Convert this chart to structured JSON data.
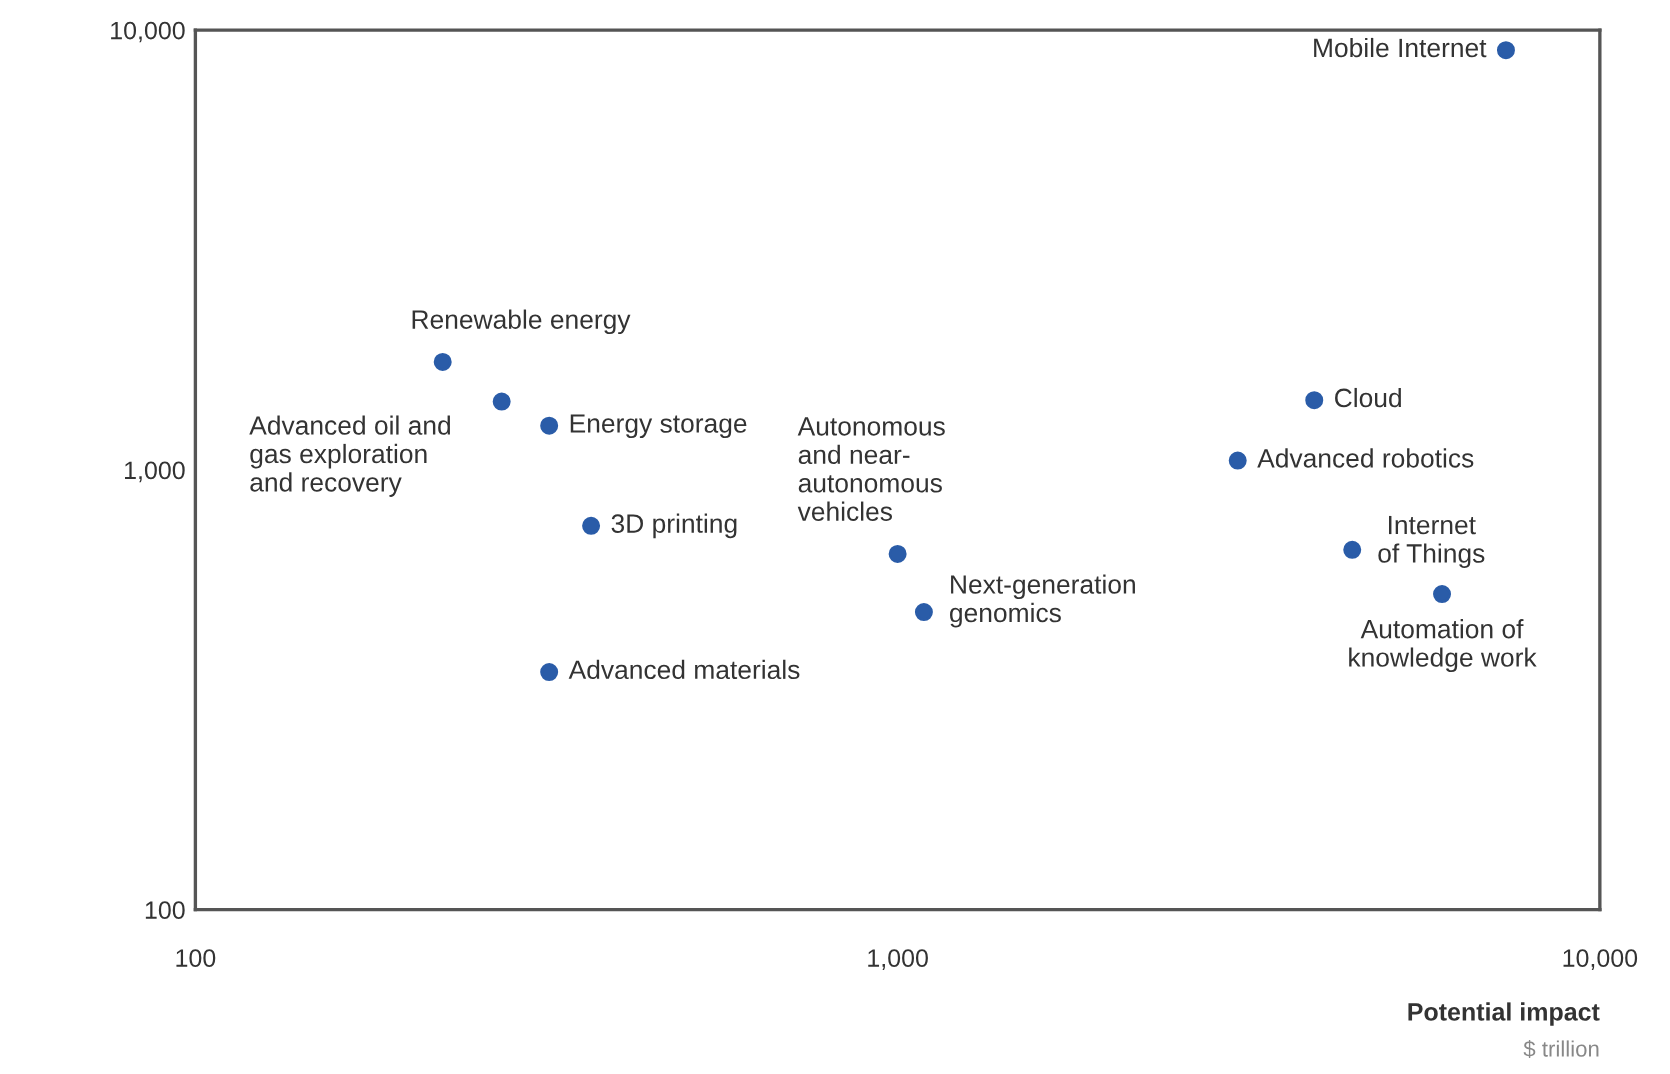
{
  "chart_data": {
    "type": "scatter",
    "xlabel": "Potential impact",
    "log": "xy",
    "xlim": [
      100,
      10000
    ],
    "ylim": [
      100,
      10000
    ],
    "xticks": [
      100,
      {
        "value": 1000,
        "label": "1,000"
      },
      {
        "value": 10000,
        "label": "10,000"
      }
    ],
    "yticks": [
      100,
      {
        "value": 1000,
        "label": "1,000"
      },
      {
        "value": 10000,
        "label": "10,000"
      }
    ],
    "grid": false,
    "marker": "circle",
    "series": [
      {
        "color": "#2a5ca8",
        "x": [
          7350,
          225,
          273,
          319,
          366,
          319,
          1000,
          1090,
          3920,
          3050,
          4440,
          5960
        ],
        "values": [
          9000,
          1760,
          1430,
          1260,
          746,
          347,
          644,
          475,
          1440,
          1050,
          658,
          522
        ]
      }
    ],
    "annotations": [
      {
        "text": "Mobile Internet",
        "x": 7350,
        "y": 9000
      },
      {
        "text": "Renewable energy",
        "x": 225,
        "y": 1760
      },
      {
        "text": "Advanced oil and\ngas exploration\nand recovery",
        "x": 273,
        "y": 1430
      },
      {
        "text": "Energy storage",
        "x": 319,
        "y": 1260
      },
      {
        "text": "3D printing",
        "x": 366,
        "y": 746
      },
      {
        "text": "Advanced materials",
        "x": 319,
        "y": 347
      },
      {
        "text": "Autonomous\nand near-\nautonomous\nvehicles",
        "x": 1000,
        "y": 644
      },
      {
        "text": "Next-generation\ngenomics",
        "x": 1090,
        "y": 475
      },
      {
        "text": "Cloud",
        "x": 3920,
        "y": 1440
      },
      {
        "text": "Advanced robotics",
        "x": 3050,
        "y": 1050
      },
      {
        "text": "Internet\nof Things",
        "x": 4440,
        "y": 658
      },
      {
        "text": "Automation of\nknowledge work",
        "x": 5960,
        "y": 522
      },
      "$ trillion"
    ]
  }
}
